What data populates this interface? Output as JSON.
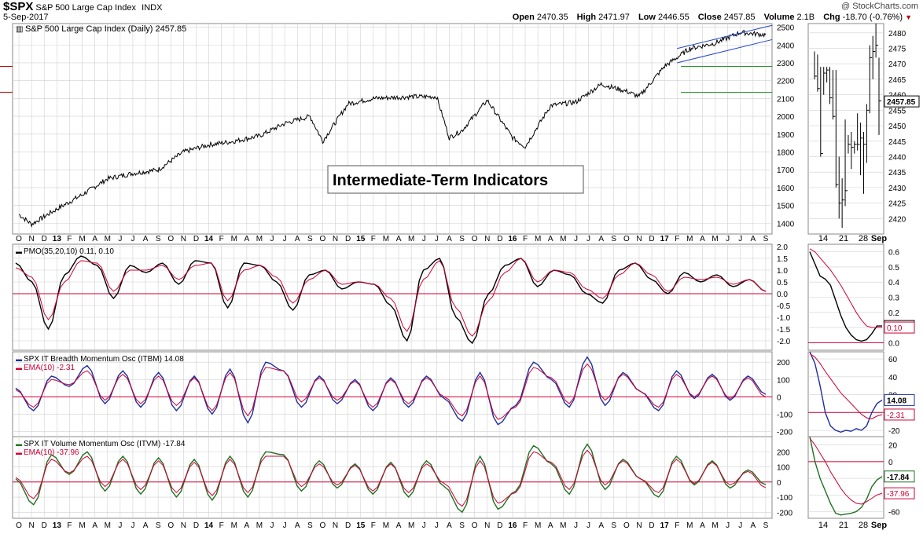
{
  "header": {
    "symbol": "$SPX",
    "name": "S&P 500 Large Cap Index",
    "exchange": "INDX",
    "date": "5-Sep-2017",
    "brand": "@ StockCharts.com",
    "open_label": "Open",
    "open": "2470.35",
    "high_label": "High",
    "high": "2471.97",
    "low_label": "Low",
    "low": "2446.55",
    "close_label": "Close",
    "close": "2457.85",
    "volume_label": "Volume",
    "volume": "2.1B",
    "chg_label": "Chg",
    "chg": "-18.70 (-0.76%)",
    "chg_icon": "down-triangle-icon"
  },
  "colors": {
    "price": "#000000",
    "pmo": "#000000",
    "signal": "#cc0033",
    "itbm": "#1f2f9f",
    "itvm": "#207020",
    "channel": "#2244cc",
    "support_red": "#b00000",
    "support_green": "#209020",
    "grid": "#d0d0d0"
  },
  "annotation": "Intermediate-Term Indicators",
  "chart_data": [
    {
      "panel": "price",
      "type": "line",
      "title": "S&P 500 Large Cap Index (Daily) 2457.85",
      "x_labels": [
        "O",
        "N",
        "D",
        "13",
        "F",
        "M",
        "A",
        "M",
        "J",
        "J",
        "A",
        "S",
        "O",
        "N",
        "D",
        "14",
        "F",
        "M",
        "A",
        "M",
        "J",
        "J",
        "A",
        "S",
        "O",
        "N",
        "D",
        "15",
        "F",
        "M",
        "A",
        "M",
        "J",
        "J",
        "A",
        "S",
        "O",
        "N",
        "D",
        "16",
        "F",
        "M",
        "A",
        "M",
        "J",
        "J",
        "A",
        "S",
        "O",
        "N",
        "D",
        "17",
        "F",
        "M",
        "A",
        "M",
        "J",
        "J",
        "A",
        "S"
      ],
      "year_labels": [
        "13",
        "14",
        "15",
        "16",
        "17"
      ],
      "y_ticks": [
        1400,
        1500,
        1600,
        1700,
        1800,
        1900,
        2000,
        2100,
        2200,
        2300,
        2400,
        2500
      ],
      "ylim": [
        1340,
        2520
      ],
      "last_value_label": "2457.85",
      "x": [
        "2012-10",
        "2012-11",
        "2013-01",
        "2013-03",
        "2013-05",
        "2013-07",
        "2013-09",
        "2013-11",
        "2014-01",
        "2014-03",
        "2014-05",
        "2014-07",
        "2014-09",
        "2014-10",
        "2014-12",
        "2015-02",
        "2015-05",
        "2015-07",
        "2015-08",
        "2015-09",
        "2015-11",
        "2016-01",
        "2016-02",
        "2016-04",
        "2016-06",
        "2016-08",
        "2016-10",
        "2016-11",
        "2017-01",
        "2017-03",
        "2017-05",
        "2017-07",
        "2017-09"
      ],
      "y": [
        1450,
        1395,
        1480,
        1560,
        1650,
        1680,
        1700,
        1800,
        1840,
        1860,
        1890,
        1960,
        2000,
        1860,
        2070,
        2100,
        2110,
        2110,
        1880,
        1920,
        2090,
        1880,
        1830,
        2060,
        2080,
        2180,
        2140,
        2110,
        2280,
        2380,
        2410,
        2470,
        2457
      ],
      "support_lines": [
        2280,
        2135
      ],
      "channel_upper": {
        "x": [
          "2017-02",
          "2017-09"
        ],
        "y": [
          2380,
          2510
        ]
      },
      "channel_lower": {
        "x": [
          "2017-02",
          "2017-09"
        ],
        "y": [
          2300,
          2430
        ]
      }
    },
    {
      "panel": "price-zoom",
      "type": "ohlc",
      "x_labels": [
        "14",
        "21",
        "28",
        "Sep"
      ],
      "y_ticks": [
        2420,
        2425,
        2430,
        2435,
        2440,
        2445,
        2450,
        2455,
        2460,
        2465,
        2470,
        2475,
        2480
      ],
      "ylim": [
        2415,
        2483
      ],
      "last_value_label": "2457.85",
      "bars": [
        {
          "h": 2474,
          "l": 2465,
          "c": 2466
        },
        {
          "h": 2473,
          "l": 2461,
          "c": 2462
        },
        {
          "h": 2469,
          "l": 2440,
          "c": 2441
        },
        {
          "h": 2469,
          "l": 2460,
          "c": 2467
        },
        {
          "h": 2469,
          "l": 2464,
          "c": 2468
        },
        {
          "h": 2469,
          "l": 2457,
          "c": 2459
        },
        {
          "h": 2468,
          "l": 2452,
          "c": 2453
        },
        {
          "h": 2468,
          "l": 2430,
          "c": 2431
        },
        {
          "h": 2440,
          "l": 2420,
          "c": 2425
        },
        {
          "h": 2433,
          "l": 2417,
          "c": 2426
        },
        {
          "h": 2452,
          "l": 2424,
          "c": 2429
        },
        {
          "h": 2447,
          "l": 2441,
          "c": 2444
        },
        {
          "h": 2448,
          "l": 2436,
          "c": 2443
        },
        {
          "h": 2445,
          "l": 2441,
          "c": 2444
        },
        {
          "h": 2454,
          "l": 2442,
          "c": 2444
        },
        {
          "h": 2451,
          "l": 2434,
          "c": 2446
        },
        {
          "h": 2448,
          "l": 2428,
          "c": 2444
        },
        {
          "h": 2457,
          "l": 2438,
          "c": 2455
        },
        {
          "h": 2476,
          "l": 2454,
          "c": 2472
        },
        {
          "h": 2479,
          "l": 2465,
          "c": 2474
        },
        {
          "h": 2483,
          "l": 2472,
          "c": 2476
        },
        {
          "h": 2472,
          "l": 2447,
          "c": 2458
        }
      ]
    },
    {
      "panel": "pmo",
      "type": "line",
      "legend": [
        "PMO(35,20,10) 0.11, 0.10"
      ],
      "series": [
        {
          "name": "PMO",
          "values": [
            1.3,
            0.5,
            -1.5,
            0.8,
            1.6,
            1.2,
            -0.2,
            1.2,
            0.9,
            1.3,
            0.4,
            1.4,
            1.3,
            -0.6,
            1.3,
            1.2,
            0.5,
            -0.7,
            0.8,
            1.0,
            0.2,
            0.5,
            0.4,
            -0.5,
            -2.0,
            1.0,
            1.5,
            -1.0,
            -2.1,
            0.0,
            1.2,
            1.5,
            0.3,
            1.0,
            0.8,
            0.0,
            -0.4,
            1.0,
            1.3,
            0.6,
            0.0,
            0.9,
            0.5,
            0.8,
            0.3,
            0.6,
            0.1
          ]
        },
        {
          "name": "Signal",
          "values": [
            1.1,
            0.7,
            -1.1,
            0.5,
            1.4,
            1.3,
            0.1,
            1.0,
            1.0,
            1.2,
            0.6,
            1.2,
            1.3,
            -0.3,
            1.0,
            1.2,
            0.7,
            -0.4,
            0.6,
            1.0,
            0.4,
            0.5,
            0.4,
            -0.2,
            -1.6,
            0.6,
            1.4,
            -0.6,
            -1.8,
            -0.3,
            0.9,
            1.5,
            0.5,
            1.0,
            0.9,
            0.2,
            -0.2,
            0.8,
            1.3,
            0.8,
            0.1,
            0.7,
            0.6,
            0.7,
            0.4,
            0.6,
            0.1
          ]
        }
      ],
      "y_ticks": [
        -2.0,
        -1.5,
        -1.0,
        -0.5,
        0.0,
        0.5,
        1.0,
        1.5,
        2.0
      ],
      "ylim": [
        -2.4,
        2.1
      ],
      "zoom_y_ticks": [
        0.0,
        0.1,
        0.2,
        0.3,
        0.4,
        0.5,
        0.6
      ],
      "zoom_ylim": [
        -0.05,
        0.65
      ],
      "zoom_series": [
        {
          "name": "PMO",
          "values": [
            0.6,
            0.52,
            0.44,
            0.42,
            0.38,
            0.28,
            0.18,
            0.1,
            0.05,
            0.02,
            0.01,
            0.02,
            0.06,
            0.11,
            0.11
          ]
        },
        {
          "name": "Signal",
          "values": [
            0.62,
            0.6,
            0.56,
            0.52,
            0.48,
            0.43,
            0.38,
            0.32,
            0.26,
            0.2,
            0.15,
            0.11,
            0.1,
            0.1,
            0.1
          ]
        }
      ],
      "zoom_labels": [
        "0.11",
        "0.10"
      ]
    },
    {
      "panel": "itbm",
      "type": "line",
      "legend": [
        "SPX IT Breadth Momentum Osc (ITBM) 14.08",
        "EMA(10) -2.31"
      ],
      "series": [
        {
          "name": "ITBM",
          "values": [
            50,
            -80,
            120,
            60,
            180,
            -40,
            150,
            -60,
            140,
            -80,
            120,
            -100,
            160,
            -150,
            200,
            150,
            -60,
            120,
            -40,
            100,
            -80,
            110,
            -60,
            120,
            -10,
            -140,
            140,
            -160,
            -50,
            200,
            100,
            -60,
            230,
            -50,
            140,
            30,
            -80,
            150,
            -10,
            130,
            -20,
            120,
            14
          ]
        },
        {
          "name": "EMA(10)",
          "values": [
            40,
            -60,
            100,
            70,
            150,
            -20,
            130,
            -40,
            120,
            -50,
            110,
            -80,
            140,
            -110,
            170,
            150,
            -30,
            110,
            -20,
            90,
            -60,
            100,
            -40,
            110,
            0,
            -110,
            120,
            -130,
            -60,
            170,
            110,
            -40,
            190,
            -20,
            130,
            30,
            -60,
            130,
            0,
            120,
            -10,
            110,
            -2
          ]
        }
      ],
      "y_ticks": [
        -200,
        -100,
        0,
        100,
        200
      ],
      "ylim": [
        -230,
        260
      ],
      "zoom_y_ticks": [
        -20,
        0,
        20,
        40,
        60
      ],
      "zoom_ylim": [
        -27,
        68
      ],
      "zoom_series": [
        {
          "name": "ITBM",
          "values": [
            68,
            55,
            30,
            0,
            -15,
            -20,
            -22,
            -20,
            -21,
            -18,
            -20,
            -15,
            0,
            10,
            14
          ]
        },
        {
          "name": "EMA(10)",
          "values": [
            66,
            62,
            55,
            46,
            38,
            30,
            22,
            16,
            10,
            4,
            -2,
            -6,
            -7,
            -4,
            -2.31
          ]
        }
      ],
      "zoom_labels": [
        "14.08",
        "-2.31"
      ]
    },
    {
      "panel": "itvm",
      "type": "line",
      "legend": [
        "SPX IT Volume Momentum Osc (ITVM) -17.84",
        "EMA(10) -37.96"
      ],
      "series": [
        {
          "name": "ITVM",
          "values": [
            20,
            -150,
            180,
            50,
            200,
            -60,
            170,
            -80,
            160,
            -100,
            150,
            -120,
            170,
            -100,
            200,
            180,
            -60,
            140,
            -40,
            120,
            -80,
            130,
            -100,
            140,
            -30,
            -200,
            170,
            -180,
            -60,
            240,
            120,
            -80,
            250,
            -50,
            150,
            20,
            -100,
            170,
            -20,
            140,
            -40,
            80,
            -18
          ]
        },
        {
          "name": "EMA(10)",
          "values": [
            30,
            -110,
            150,
            60,
            170,
            -30,
            150,
            -50,
            140,
            -70,
            130,
            -90,
            150,
            -70,
            170,
            170,
            -30,
            120,
            -20,
            110,
            -60,
            120,
            -70,
            120,
            -10,
            -160,
            140,
            -140,
            -70,
            200,
            130,
            -50,
            210,
            -20,
            140,
            20,
            -70,
            150,
            -10,
            130,
            -20,
            70,
            -38
          ]
        }
      ],
      "y_ticks": [
        -200,
        -100,
        0,
        100,
        200
      ],
      "ylim": [
        -240,
        300
      ],
      "zoom_y_ticks": [
        -60,
        -40,
        -20,
        0,
        20
      ],
      "zoom_ylim": [
        -68,
        30
      ],
      "zoom_series": [
        {
          "name": "ITVM",
          "values": [
            30,
            0,
            -20,
            -35,
            -50,
            -62,
            -64,
            -63,
            -62,
            -60,
            -55,
            -45,
            -30,
            -22,
            -17.84
          ]
        },
        {
          "name": "EMA(10)",
          "values": [
            28,
            20,
            10,
            0,
            -12,
            -22,
            -32,
            -40,
            -46,
            -50,
            -51,
            -48,
            -44,
            -40,
            -37.96
          ]
        }
      ],
      "zoom_labels": [
        "-17.84",
        "-37.96"
      ]
    }
  ]
}
